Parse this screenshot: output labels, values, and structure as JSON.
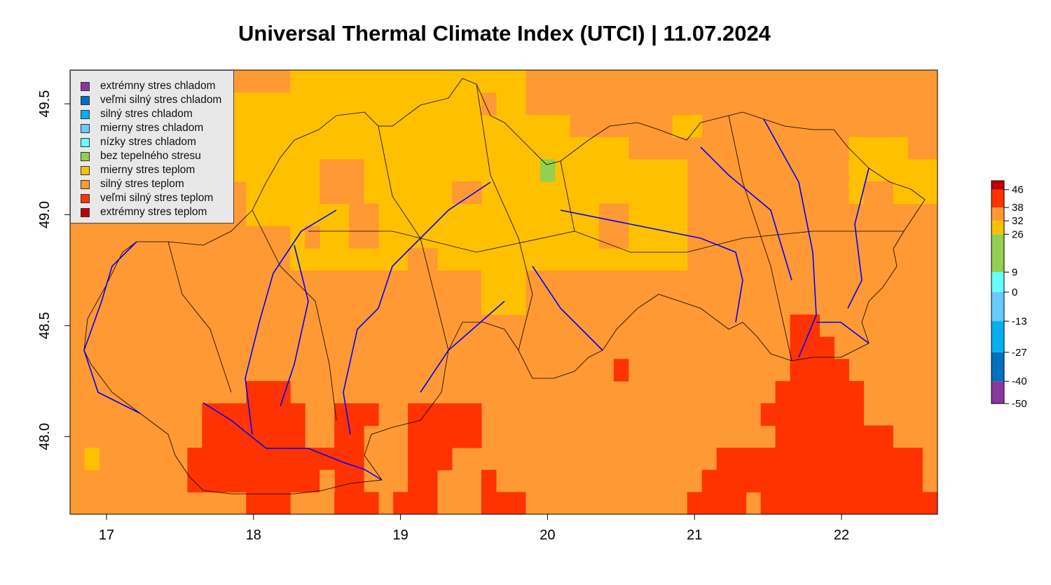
{
  "title": "Universal Thermal Climate Index (UTCI) | 11.07.2024",
  "map": {
    "extent": {
      "lon": [
        16.752,
        22.653
      ],
      "lat": [
        47.65,
        49.652
      ]
    },
    "x_ticks": [
      17,
      18,
      19,
      20,
      21,
      22
    ],
    "y_ticks": [
      48.0,
      48.5,
      49.0,
      49.5
    ],
    "y_tick_labels": [
      "48.0",
      "48.5",
      "49.0",
      "49.5"
    ],
    "background_category": 7,
    "cells": [
      [
        17.85,
        18.25,
        49.15,
        49.55,
        6
      ],
      [
        17.95,
        18.35,
        48.95,
        49.15,
        6
      ],
      [
        18.25,
        19.85,
        48.75,
        49.65,
        6
      ],
      [
        19.85,
        20.15,
        48.75,
        49.45,
        6
      ],
      [
        20.15,
        20.55,
        48.75,
        49.35,
        6
      ],
      [
        20.55,
        20.95,
        48.75,
        49.25,
        6
      ],
      [
        20.85,
        21.05,
        49.35,
        49.45,
        6
      ],
      [
        19.55,
        19.85,
        48.55,
        48.75,
        6
      ],
      [
        22.05,
        22.45,
        49.25,
        49.35,
        6
      ],
      [
        22.05,
        22.65,
        49.05,
        49.25,
        6
      ],
      [
        16.85,
        16.95,
        47.85,
        47.95,
        6
      ],
      [
        18.45,
        18.75,
        49.05,
        49.25,
        7
      ],
      [
        18.65,
        18.85,
        48.85,
        49.05,
        7
      ],
      [
        19.35,
        19.55,
        49.05,
        49.15,
        7
      ],
      [
        19.05,
        19.25,
        48.75,
        48.85,
        7
      ],
      [
        19.55,
        19.65,
        49.45,
        49.55,
        7
      ],
      [
        22.15,
        22.35,
        49.05,
        49.15,
        7
      ],
      [
        20.35,
        20.55,
        48.85,
        49.05,
        7
      ],
      [
        18.35,
        18.45,
        48.85,
        48.95,
        7
      ],
      [
        19.95,
        20.05,
        49.15,
        49.25,
        5
      ],
      [
        17.65,
        18.35,
        47.75,
        48.15,
        8
      ],
      [
        17.55,
        17.65,
        47.75,
        47.95,
        8
      ],
      [
        17.95,
        18.25,
        48.15,
        48.25,
        8
      ],
      [
        17.95,
        18.25,
        47.65,
        47.75,
        8
      ],
      [
        18.35,
        18.75,
        47.75,
        47.95,
        8
      ],
      [
        18.55,
        18.85,
        48.05,
        48.15,
        8
      ],
      [
        18.55,
        18.75,
        47.95,
        48.05,
        8
      ],
      [
        18.55,
        18.85,
        47.65,
        47.75,
        8
      ],
      [
        19.05,
        19.55,
        47.95,
        48.15,
        8
      ],
      [
        19.05,
        19.35,
        47.85,
        47.95,
        8
      ],
      [
        19.05,
        19.25,
        47.75,
        47.85,
        8
      ],
      [
        18.95,
        19.25,
        47.65,
        47.75,
        8
      ],
      [
        19.55,
        19.65,
        47.65,
        47.85,
        8
      ],
      [
        19.65,
        19.85,
        47.65,
        47.75,
        8
      ],
      [
        20.45,
        20.55,
        48.25,
        48.35,
        8
      ],
      [
        21.65,
        21.85,
        48.45,
        48.55,
        8
      ],
      [
        21.65,
        21.95,
        48.35,
        48.45,
        8
      ],
      [
        21.65,
        22.05,
        48.25,
        48.35,
        8
      ],
      [
        21.55,
        22.15,
        48.15,
        48.25,
        8
      ],
      [
        21.45,
        22.15,
        48.05,
        48.15,
        8
      ],
      [
        21.55,
        22.35,
        47.95,
        48.05,
        8
      ],
      [
        21.15,
        22.55,
        47.85,
        47.95,
        8
      ],
      [
        21.05,
        22.55,
        47.75,
        47.85,
        8
      ],
      [
        20.95,
        21.35,
        47.65,
        47.75,
        8
      ],
      [
        21.45,
        22.65,
        47.65,
        47.75,
        8
      ],
      [
        18.45,
        18.55,
        47.75,
        47.85,
        7
      ]
    ]
  },
  "legend": [
    {
      "label": "extrémny stres chladom",
      "color": "#8b35a0"
    },
    {
      "label": "veľmi silný stres chladom",
      "color": "#0070c0"
    },
    {
      "label": "silný stres chladom",
      "color": "#00b0f0"
    },
    {
      "label": "mierny stres chladom",
      "color": "#66ccff"
    },
    {
      "label": "nízky stres chladom",
      "color": "#66ffff"
    },
    {
      "label": "bez tepelného stresu",
      "color": "#92d050"
    },
    {
      "label": "mierny stres teplom",
      "color": "#ffc000"
    },
    {
      "label": "silný stres teplom",
      "color": "#ff9933"
    },
    {
      "label": "veľmi silný stres teplom",
      "color": "#ff3300"
    },
    {
      "label": "extrémny stres teplom",
      "color": "#c00000"
    }
  ],
  "colorbar": {
    "breaks": [
      -50,
      -40,
      -27,
      -13,
      0,
      9,
      26,
      32,
      38,
      46,
      50
    ],
    "labels": [
      "-50",
      "-40",
      "-27",
      "-13",
      "0",
      "9",
      "26",
      "32",
      "38",
      "46"
    ]
  }
}
